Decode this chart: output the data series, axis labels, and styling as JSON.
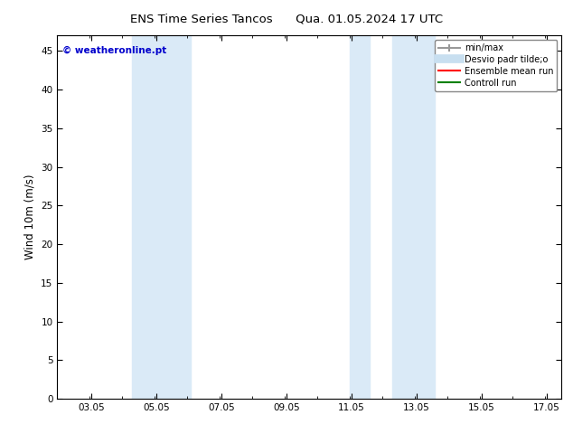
{
  "title_left": "ENS Time Series Tancos",
  "title_right": "Qua. 01.05.2024 17 UTC",
  "ylabel": "Wind 10m (m/s)",
  "xlim_min": 2.0,
  "xlim_max": 17.5,
  "ylim_min": 0,
  "ylim_max": 47,
  "xtick_labels": [
    "03.05",
    "05.05",
    "07.05",
    "09.05",
    "11.05",
    "13.05",
    "15.05",
    "17.05"
  ],
  "xtick_positions": [
    3.05,
    5.05,
    7.05,
    9.05,
    11.05,
    13.05,
    15.05,
    17.05
  ],
  "ytick_positions": [
    0,
    5,
    10,
    15,
    20,
    25,
    30,
    35,
    40,
    45
  ],
  "shaded_bands": [
    {
      "xmin": 4.3,
      "xmax": 6.1
    },
    {
      "xmin": 11.0,
      "xmax": 11.6
    },
    {
      "xmin": 12.3,
      "xmax": 13.6
    }
  ],
  "band_color": "#daeaf7",
  "watermark_text": "© weatheronline.pt",
  "watermark_color": "#0000cc",
  "legend_entries": [
    {
      "label": "min/max",
      "color": "#999999",
      "lw": 1.5
    },
    {
      "label": "Desvio padr tilde;o",
      "color": "#c8dff0",
      "lw": 7
    },
    {
      "label": "Ensemble mean run",
      "color": "red",
      "lw": 1.5
    },
    {
      "label": "Controll run",
      "color": "green",
      "lw": 1.5
    }
  ],
  "bg_color": "#ffffff",
  "title_fontsize": 9.5,
  "axis_label_fontsize": 8.5,
  "tick_fontsize": 7.5,
  "legend_fontsize": 7,
  "watermark_fontsize": 7.5
}
